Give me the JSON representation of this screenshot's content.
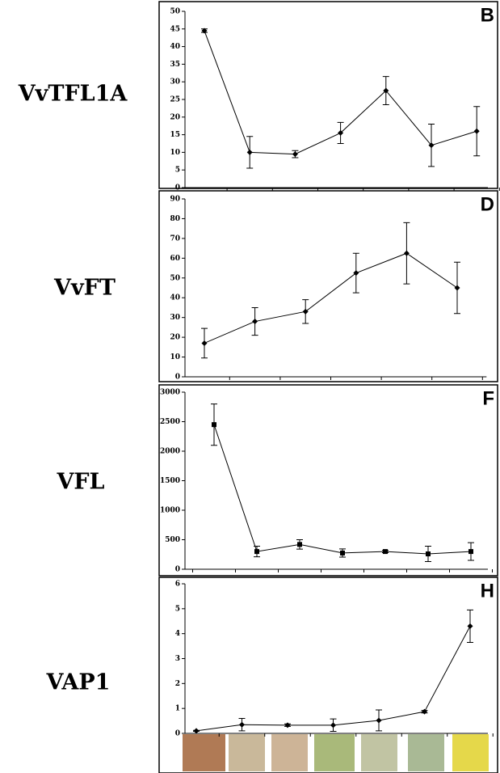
{
  "chart_data": [
    {
      "type": "line",
      "title": "VvTFL1A",
      "panel_label": "B",
      "marker": "diamond",
      "color": "#000000",
      "values": [
        44.5,
        10,
        9.5,
        15.5,
        27.5,
        12,
        16
      ],
      "errors": [
        0.5,
        4.5,
        1,
        3,
        4,
        6,
        7
      ],
      "ylim": [
        0,
        50
      ],
      "yticks": [
        0,
        5,
        10,
        15,
        20,
        25,
        30,
        35,
        40,
        45,
        50
      ]
    },
    {
      "type": "line",
      "title": "VvFT",
      "panel_label": "D",
      "marker": "diamond",
      "color": "#000000",
      "values": [
        17,
        28,
        33,
        52.5,
        62.5,
        45
      ],
      "errors": [
        7.5,
        7,
        6,
        10,
        15.5,
        13
      ],
      "ylim": [
        0,
        90
      ],
      "yticks": [
        0,
        10,
        20,
        30,
        40,
        50,
        60,
        70,
        80,
        90
      ]
    },
    {
      "type": "line",
      "title": "VFL",
      "panel_label": "F",
      "marker": "square",
      "color": "#000000",
      "values": [
        2450,
        300,
        420,
        275,
        300,
        260,
        300
      ],
      "errors": [
        350,
        90,
        80,
        70,
        20,
        130,
        150
      ],
      "ylim": [
        0,
        3000
      ],
      "yticks": [
        0,
        500,
        1000,
        1500,
        2000,
        2500,
        3000
      ]
    },
    {
      "type": "line",
      "title": "VAP1",
      "panel_label": "H",
      "marker": "diamond",
      "color": "#000000",
      "values": [
        0.1,
        0.35,
        0.33,
        0.33,
        0.52,
        0.87,
        4.3
      ],
      "errors": [
        0.02,
        0.25,
        0.05,
        0.25,
        0.42,
        0.05,
        0.65
      ],
      "ylim": [
        0,
        6
      ],
      "yticks": [
        0,
        1,
        2,
        3,
        4,
        5,
        6
      ]
    }
  ]
}
